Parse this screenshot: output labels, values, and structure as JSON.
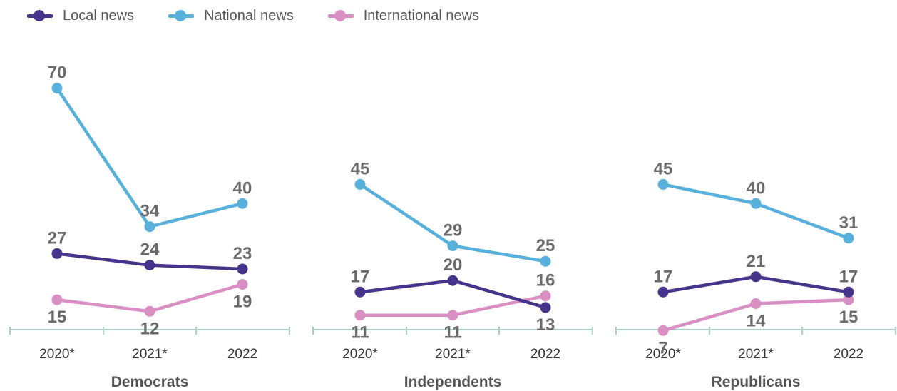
{
  "legend": {
    "local": "Local news",
    "national": "National news",
    "international": "International news"
  },
  "colors": {
    "local": "#46338c",
    "national": "#58b0dc",
    "international": "#d98fc4",
    "axis": "#a8cfc2"
  },
  "chart_data": {
    "type": "line",
    "legend_position": "top-left",
    "grid": false,
    "categories": [
      "2020*",
      "2021*",
      "2022"
    ],
    "panels": [
      {
        "title": "Democrats",
        "series": [
          {
            "name": "Local news",
            "key": "local",
            "values": [
              27,
              24,
              23
            ]
          },
          {
            "name": "National news",
            "key": "national",
            "values": [
              70,
              34,
              40
            ]
          },
          {
            "name": "International news",
            "key": "international",
            "values": [
              15,
              12,
              19
            ]
          }
        ]
      },
      {
        "title": "Independents",
        "series": [
          {
            "name": "Local news",
            "key": "local",
            "values": [
              17,
              20,
              13
            ]
          },
          {
            "name": "National news",
            "key": "national",
            "values": [
              45,
              29,
              25
            ]
          },
          {
            "name": "International news",
            "key": "international",
            "values": [
              11,
              11,
              16
            ]
          }
        ]
      },
      {
        "title": "Republicans",
        "series": [
          {
            "name": "Local news",
            "key": "local",
            "values": [
              17,
              21,
              17
            ]
          },
          {
            "name": "National news",
            "key": "national",
            "values": [
              45,
              40,
              31
            ]
          },
          {
            "name": "International news",
            "key": "international",
            "values": [
              7,
              14,
              15
            ]
          }
        ]
      }
    ]
  }
}
